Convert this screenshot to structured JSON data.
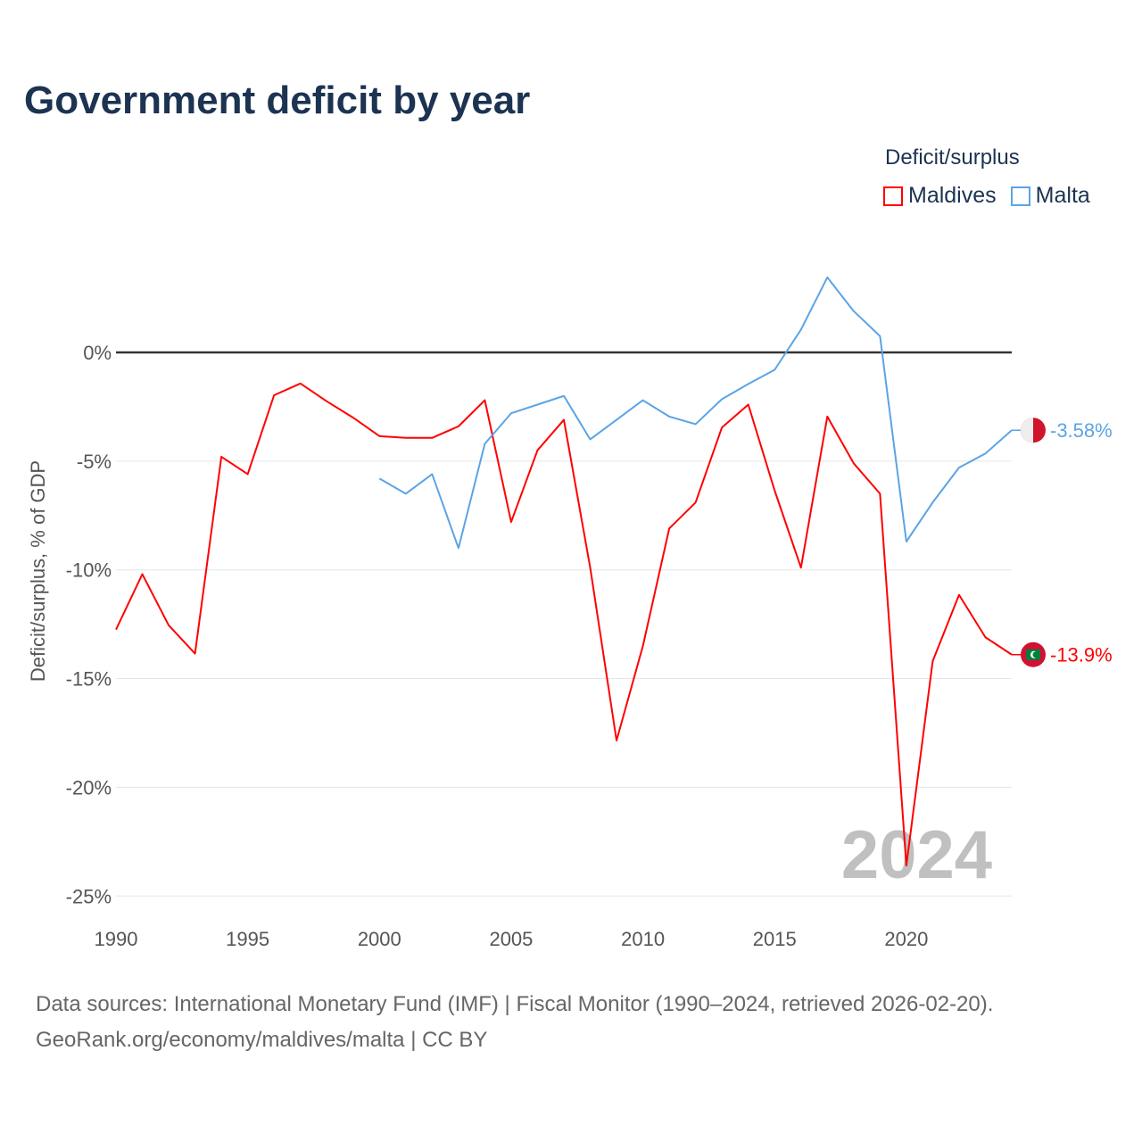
{
  "header": {
    "title": "Government deficit by year"
  },
  "watermark_year": "2024",
  "footer": {
    "line1": "Data sources: International Monetary Fund (IMF) | Fiscal Monitor (1990–2024, retrieved 2026-02-20).",
    "line2": "GeoRank.org/economy/maldives/malta | CC BY"
  },
  "chart_data": {
    "type": "line",
    "title": "Government deficit by year",
    "xlabel": "",
    "ylabel": "Deficit/surplus, % of GDP",
    "legend_title": "Deficit/surplus",
    "legend_position": "top-right",
    "xlim": [
      1990,
      2024
    ],
    "ylim": [
      -25.5,
      4.5
    ],
    "xticks": [
      1990,
      1995,
      2000,
      2005,
      2010,
      2015,
      2020
    ],
    "yticks": [
      0,
      -5,
      -10,
      -15,
      -20,
      -25
    ],
    "ytick_labels": [
      "0%",
      "-5%",
      "-10%",
      "-15%",
      "-20%",
      "-25%"
    ],
    "grid": true,
    "series": [
      {
        "name": "Maldives",
        "color": "#ff0000",
        "end_label": "-13.9%",
        "flag": "maldives-flag",
        "x": [
          1990,
          1991,
          1992,
          1993,
          1994,
          1995,
          1996,
          1997,
          1998,
          1999,
          2000,
          2001,
          2002,
          2003,
          2004,
          2005,
          2006,
          2007,
          2008,
          2009,
          2010,
          2011,
          2012,
          2013,
          2014,
          2015,
          2016,
          2017,
          2018,
          2019,
          2020,
          2021,
          2022,
          2023,
          2024
        ],
        "values": [
          -12.75,
          -10.2,
          -12.55,
          -13.85,
          -4.8,
          -5.6,
          -1.97,
          -1.43,
          -2.25,
          -3.0,
          -3.85,
          -3.93,
          -3.93,
          -3.4,
          -2.2,
          -7.8,
          -4.5,
          -3.1,
          -9.9,
          -17.85,
          -13.5,
          -8.1,
          -6.9,
          -3.45,
          -2.4,
          -6.35,
          -9.9,
          -2.95,
          -5.1,
          -6.5,
          -23.6,
          -14.2,
          -11.15,
          -13.1,
          -13.9
        ]
      },
      {
        "name": "Malta",
        "color": "#5ba4e5",
        "end_label": "-3.58%",
        "flag": "malta-flag",
        "x": [
          2000,
          2001,
          2002,
          2003,
          2004,
          2005,
          2006,
          2007,
          2008,
          2009,
          2010,
          2011,
          2012,
          2013,
          2014,
          2015,
          2016,
          2017,
          2018,
          2019,
          2020,
          2021,
          2022,
          2023,
          2024
        ],
        "values": [
          -5.8,
          -6.5,
          -5.6,
          -9.0,
          -4.2,
          -2.8,
          -2.4,
          -2.0,
          -4.0,
          -3.1,
          -2.2,
          -2.95,
          -3.3,
          -2.15,
          -1.45,
          -0.8,
          1.05,
          3.45,
          1.9,
          0.75,
          -8.7,
          -6.9,
          -5.3,
          -4.65,
          -3.58
        ]
      }
    ]
  }
}
